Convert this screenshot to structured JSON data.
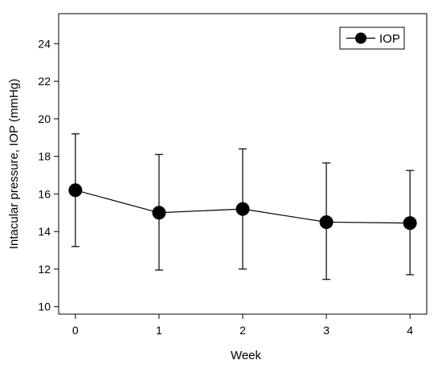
{
  "chart_data": {
    "type": "line",
    "title": "",
    "xlabel": "Week",
    "ylabel": "Intacular pressure, IOP (mmHg)",
    "x": [
      0,
      1,
      2,
      3,
      4
    ],
    "xlim": [
      -0.2,
      4.2
    ],
    "ylim": [
      9.6,
      25.6
    ],
    "xticks": [
      "0",
      "1",
      "2",
      "3",
      "4"
    ],
    "yticks": [
      "10",
      "12",
      "14",
      "16",
      "18",
      "20",
      "22",
      "24"
    ],
    "grid": false,
    "legend_position": "top-right",
    "series": [
      {
        "name": "IOP",
        "values": [
          16.2,
          15.0,
          15.2,
          14.5,
          14.45
        ],
        "error_low": [
          13.2,
          11.95,
          12.0,
          11.45,
          11.7
        ],
        "error_high": [
          19.2,
          18.1,
          18.4,
          17.65,
          17.25
        ],
        "color": "#000000",
        "marker": "filled-circle"
      }
    ]
  }
}
